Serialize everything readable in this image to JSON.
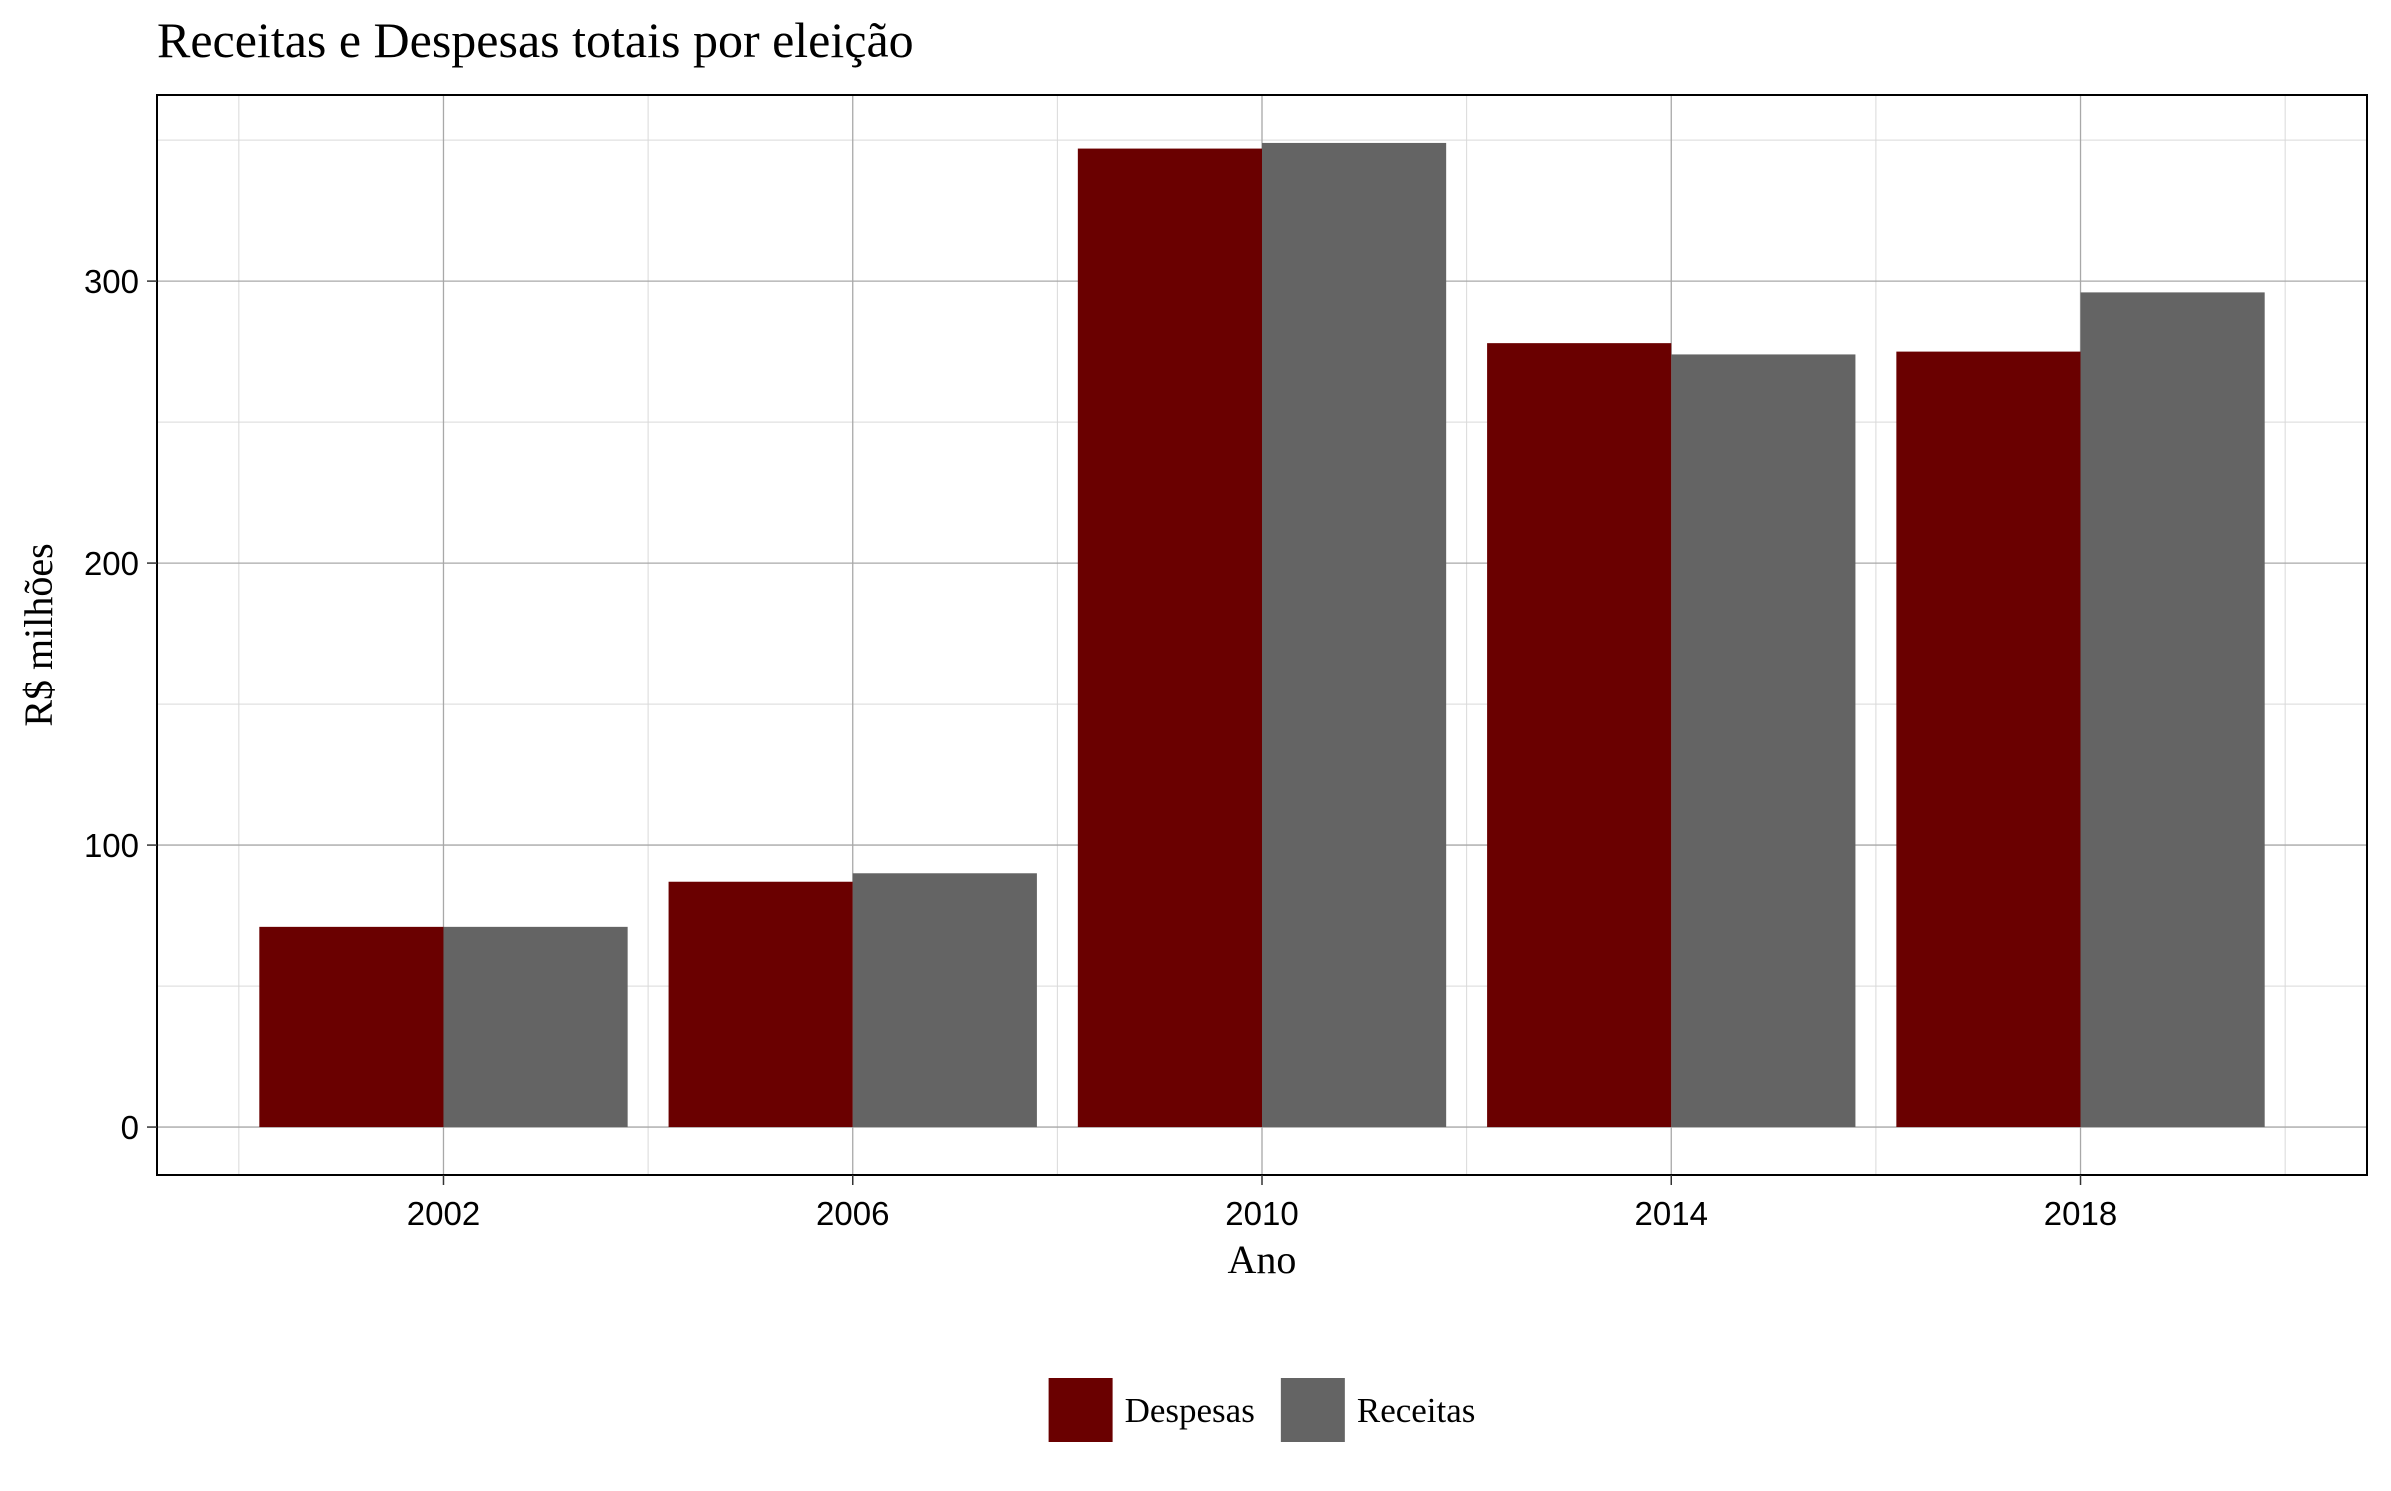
{
  "chart_data": {
    "type": "bar",
    "title": "Receitas e Despesas totais por eleição",
    "xlabel": "Ano",
    "ylabel": "R$ milhões",
    "categories": [
      "2002",
      "2006",
      "2010",
      "2014",
      "2018"
    ],
    "x": [
      2002,
      2006,
      2010,
      2014,
      2018
    ],
    "series": [
      {
        "name": "Despesas",
        "color": "#6a0000",
        "values": [
          71,
          87,
          347,
          278,
          275
        ]
      },
      {
        "name": "Receitas",
        "color": "#646464",
        "values": [
          71,
          90,
          349,
          274,
          296
        ]
      }
    ],
    "ylim": [
      -17,
      366
    ],
    "xlim": [
      1999.2,
      2020.8
    ],
    "yticks": [
      "0",
      "100",
      "200",
      "300"
    ],
    "grid": true,
    "legend_position": "bottom"
  }
}
